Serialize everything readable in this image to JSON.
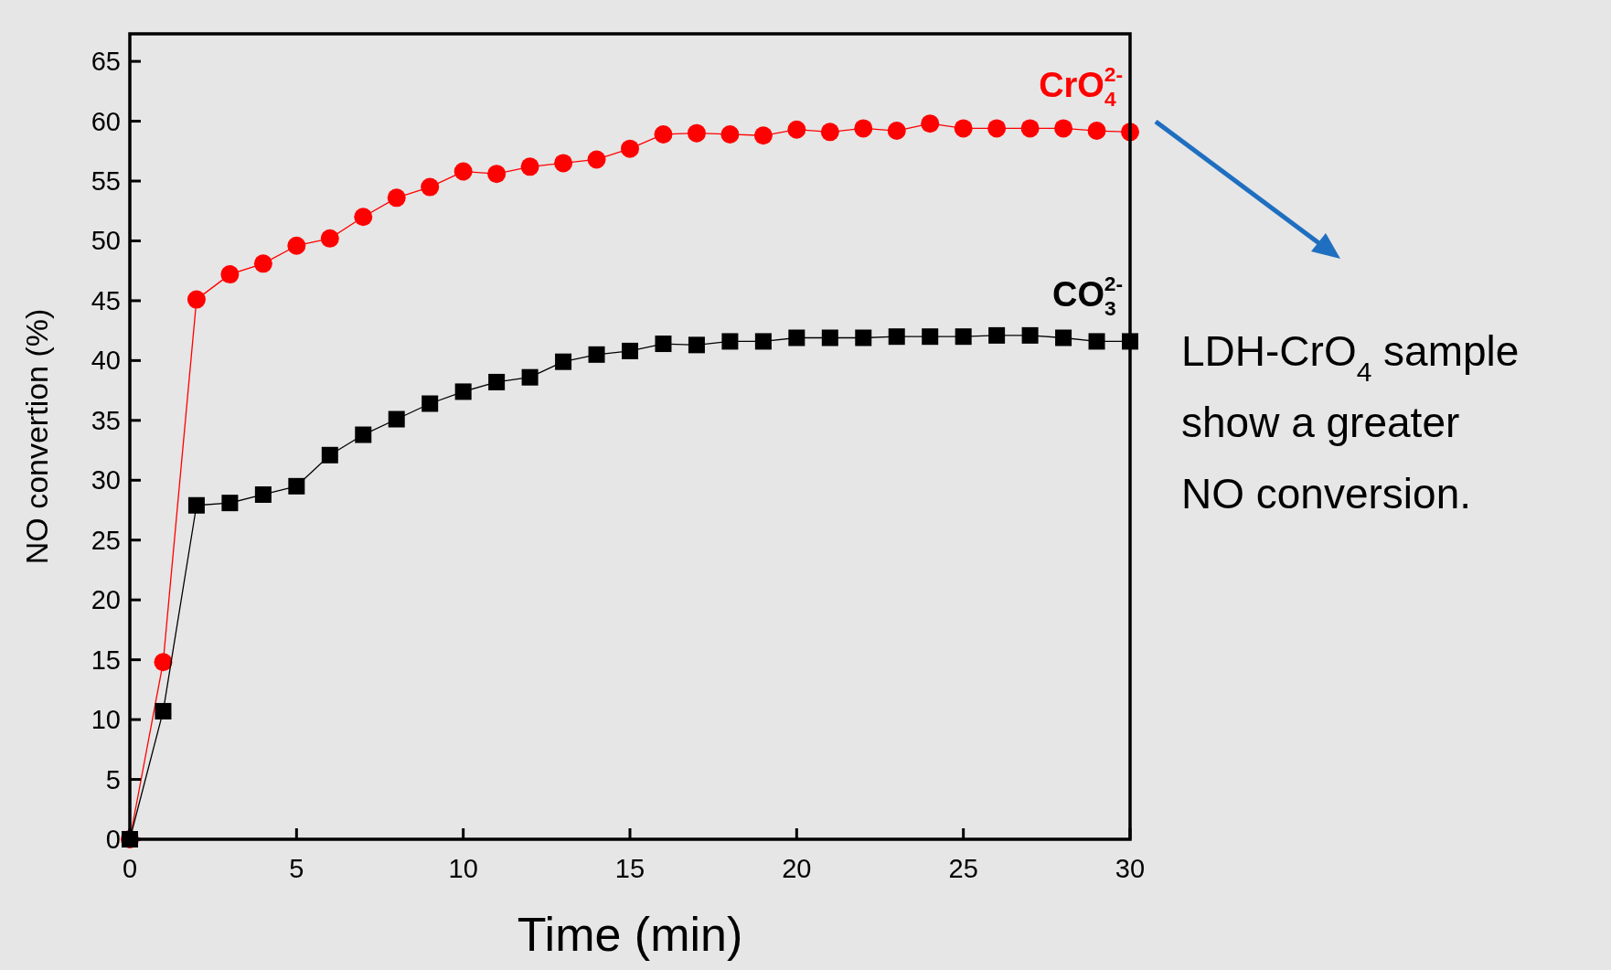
{
  "chart_data": {
    "type": "line",
    "xlabel": "Time (min)",
    "ylabel": "NO convertion (%)",
    "x": [
      0,
      1,
      2,
      3,
      4,
      5,
      6,
      7,
      8,
      9,
      10,
      11,
      12,
      13,
      14,
      15,
      16,
      17,
      18,
      19,
      20,
      21,
      22,
      23,
      24,
      25,
      26,
      27,
      28,
      29,
      30
    ],
    "series": [
      {
        "name": "CrO$_{4}$$^{2-}$",
        "color": "#ff0000",
        "marker": "circle",
        "values": [
          0,
          14.8,
          45.1,
          47.2,
          48.1,
          49.6,
          50.2,
          52.0,
          53.6,
          54.5,
          55.8,
          55.6,
          56.2,
          56.5,
          56.8,
          57.7,
          58.9,
          59.0,
          58.9,
          58.8,
          59.3,
          59.1,
          59.4,
          59.2,
          59.8,
          59.4,
          59.4,
          59.4,
          59.4,
          59.2,
          59.1
        ]
      },
      {
        "name": "CO$_{3}$$^{2-}$",
        "color": "#000000",
        "marker": "square",
        "values": [
          0,
          10.7,
          27.9,
          28.1,
          28.8,
          29.5,
          32.1,
          33.8,
          35.1,
          36.4,
          37.4,
          38.2,
          38.6,
          39.9,
          40.5,
          40.8,
          41.4,
          41.3,
          41.6,
          41.6,
          41.9,
          41.9,
          41.9,
          42.0,
          42.0,
          42.0,
          42.1,
          42.1,
          41.9,
          41.6,
          41.6
        ]
      }
    ],
    "xlim": [
      0,
      30
    ],
    "xticks": [
      0,
      5,
      10,
      15,
      20,
      25,
      30
    ],
    "ylim": [
      0,
      67.3
    ],
    "yticks": [
      0,
      5,
      10,
      15,
      20,
      25,
      30,
      35,
      40,
      45,
      50,
      55,
      60,
      65
    ],
    "grid": false,
    "line_style": "solid",
    "annotations": [
      "LDH-CrO$_{4}$ sample show a greater NO conversion."
    ]
  }
}
